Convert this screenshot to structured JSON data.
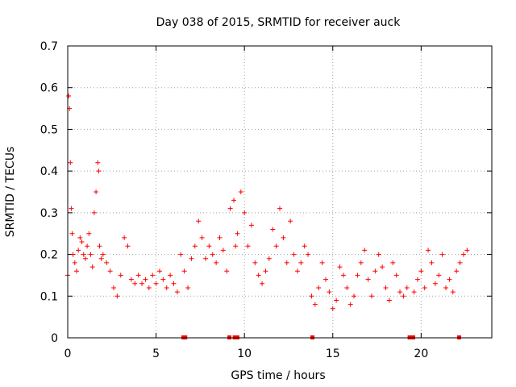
{
  "chart_data": {
    "type": "scatter",
    "title": "Day 038 of 2015, SRMTID for receiver auck",
    "xlabel": "GPS time / hours",
    "ylabel": "SRMTID / TECUs",
    "xlim": [
      0,
      24
    ],
    "ylim": [
      0,
      0.7
    ],
    "xticks": [
      0,
      5,
      10,
      15,
      20
    ],
    "yticks": [
      0,
      0.1,
      0.2,
      0.3,
      0.4,
      0.5,
      0.6,
      0.7
    ],
    "grid": true,
    "marker": "+",
    "color": "#ff0000",
    "series": [
      {
        "name": "SRMTID",
        "x": [
          0.0,
          0.05,
          0.1,
          0.15,
          0.2,
          0.25,
          0.3,
          0.4,
          0.5,
          0.6,
          0.7,
          0.8,
          0.9,
          1.0,
          1.1,
          1.2,
          1.3,
          1.4,
          1.5,
          1.6,
          1.7,
          1.75,
          1.8,
          1.9,
          2.0,
          2.2,
          2.4,
          2.6,
          2.8,
          3.0,
          3.2,
          3.4,
          3.6,
          3.8,
          4.0,
          4.2,
          4.4,
          4.6,
          4.8,
          5.0,
          5.2,
          5.4,
          5.6,
          5.8,
          6.0,
          6.2,
          6.4,
          6.6,
          6.8,
          7.0,
          7.2,
          7.4,
          7.6,
          7.8,
          8.0,
          8.2,
          8.4,
          8.6,
          8.8,
          9.0,
          9.2,
          9.4,
          9.5,
          9.6,
          9.8,
          10.0,
          10.2,
          10.4,
          10.6,
          10.8,
          11.0,
          11.2,
          11.4,
          11.6,
          11.8,
          12.0,
          12.2,
          12.4,
          12.6,
          12.8,
          13.0,
          13.2,
          13.4,
          13.6,
          13.8,
          14.0,
          14.2,
          14.4,
          14.6,
          14.8,
          15.0,
          15.2,
          15.4,
          15.6,
          15.8,
          16.0,
          16.2,
          16.4,
          16.6,
          16.8,
          17.0,
          17.2,
          17.4,
          17.6,
          17.8,
          18.0,
          18.2,
          18.4,
          18.6,
          18.8,
          19.0,
          19.2,
          19.6,
          19.8,
          20.0,
          20.2,
          20.4,
          20.6,
          20.8,
          21.0,
          21.2,
          21.4,
          21.6,
          21.8,
          22.0,
          22.2,
          22.4,
          22.6
        ],
        "y": [
          0.15,
          0.58,
          0.55,
          0.42,
          0.31,
          0.25,
          0.2,
          0.18,
          0.16,
          0.21,
          0.24,
          0.23,
          0.2,
          0.19,
          0.22,
          0.25,
          0.2,
          0.17,
          0.3,
          0.35,
          0.42,
          0.4,
          0.22,
          0.19,
          0.2,
          0.18,
          0.16,
          0.12,
          0.1,
          0.15,
          0.24,
          0.22,
          0.14,
          0.13,
          0.15,
          0.13,
          0.14,
          0.12,
          0.15,
          0.13,
          0.16,
          0.14,
          0.12,
          0.15,
          0.13,
          0.11,
          0.2,
          0.16,
          0.12,
          0.19,
          0.22,
          0.28,
          0.24,
          0.19,
          0.22,
          0.2,
          0.18,
          0.24,
          0.21,
          0.16,
          0.31,
          0.33,
          0.22,
          0.25,
          0.35,
          0.3,
          0.22,
          0.27,
          0.18,
          0.15,
          0.13,
          0.16,
          0.19,
          0.26,
          0.22,
          0.31,
          0.24,
          0.18,
          0.28,
          0.2,
          0.16,
          0.18,
          0.22,
          0.2,
          0.1,
          0.08,
          0.12,
          0.18,
          0.14,
          0.11,
          0.07,
          0.09,
          0.17,
          0.15,
          0.12,
          0.08,
          0.1,
          0.15,
          0.18,
          0.21,
          0.14,
          0.1,
          0.16,
          0.2,
          0.17,
          0.12,
          0.09,
          0.18,
          0.15,
          0.11,
          0.1,
          0.12,
          0.11,
          0.14,
          0.16,
          0.12,
          0.21,
          0.18,
          0.13,
          0.15,
          0.2,
          0.12,
          0.14,
          0.11,
          0.16,
          0.18,
          0.2,
          0.21
        ]
      }
    ],
    "gap_markers_x": [
      6.55,
      6.65,
      9.15,
      9.45,
      9.6,
      13.85,
      19.35,
      19.55,
      22.15
    ]
  }
}
